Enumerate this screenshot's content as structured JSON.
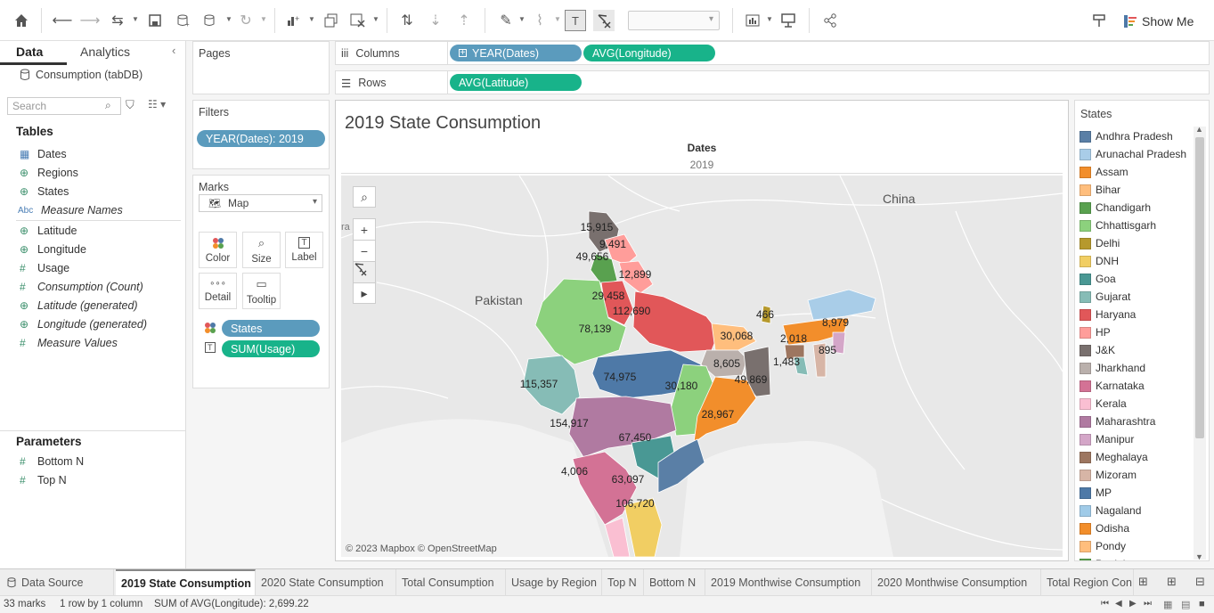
{
  "toolbar": {
    "icons": [
      "home-icon",
      "undo-icon",
      "redo-icon",
      "replay-icon",
      "save-icon",
      "new-datasource-icon",
      "pause-updates-icon",
      "refresh-icon",
      "new-worksheet-icon",
      "duplicate-icon",
      "clear-sheet-icon",
      "swap-icon",
      "sort-asc-icon",
      "sort-desc-icon",
      "highlight-icon",
      "group-icon",
      "label-toggle-icon",
      "fix-axes-icon",
      "fit-icon",
      "presentation-icon",
      "share-icon",
      "pin-icon",
      "show-me-icon"
    ],
    "fit_value": "",
    "show_me_label": "Show Me"
  },
  "data_pane": {
    "tab_data": "Data",
    "tab_analytics": "Analytics",
    "datasource": "Consumption (tabDB)",
    "search_placeholder": "Search",
    "tables_heading": "Tables",
    "fields": [
      {
        "label": "Dates",
        "icon": "calendar-icon",
        "italic": false
      },
      {
        "label": "Regions",
        "icon": "globe-icon",
        "italic": false
      },
      {
        "label": "States",
        "icon": "globe-icon",
        "italic": false
      },
      {
        "label": "Measure Names",
        "icon": "abc-icon",
        "italic": true
      },
      {
        "label": "Latitude",
        "icon": "globe-icon",
        "italic": false
      },
      {
        "label": "Longitude",
        "icon": "globe-icon",
        "italic": false
      },
      {
        "label": "Usage",
        "icon": "hash-icon",
        "italic": false
      },
      {
        "label": "Consumption (Count)",
        "icon": "hash-icon",
        "italic": true
      },
      {
        "label": "Latitude (generated)",
        "icon": "globe-icon",
        "italic": true
      },
      {
        "label": "Longitude (generated)",
        "icon": "globe-icon",
        "italic": true
      },
      {
        "label": "Measure Values",
        "icon": "hash-icon",
        "italic": true
      }
    ],
    "parameters_heading": "Parameters",
    "parameters": [
      "Bottom N",
      "Top N"
    ]
  },
  "pages": {
    "title": "Pages"
  },
  "filters": {
    "title": "Filters",
    "pill": "YEAR(Dates): 2019"
  },
  "marks": {
    "title": "Marks",
    "type": "Map",
    "buttons": [
      "Color",
      "Size",
      "Label",
      "Detail",
      "Tooltip"
    ],
    "pills": [
      "States",
      "SUM(Usage)"
    ]
  },
  "shelves": {
    "columns_label": "Columns",
    "rows_label": "Rows",
    "columns_pills": [
      "YEAR(Dates)",
      "AVG(Longitude)"
    ],
    "rows_pills": [
      "AVG(Latitude)"
    ]
  },
  "viz": {
    "title": "2019 State Consumption",
    "column_header_label": "Dates",
    "column_header_value": "2019",
    "map_labels": {
      "pakistan": "Pakistan",
      "china": "China",
      "partial_left": "ra"
    },
    "attribution": "© 2023 Mapbox © OpenStreetMap",
    "values": [
      {
        "label": "15,915"
      },
      {
        "label": "9,491"
      },
      {
        "label": "49,656"
      },
      {
        "label": "12,899"
      },
      {
        "label": "29,458"
      },
      {
        "label": "112,690"
      },
      {
        "label": "78,139"
      },
      {
        "label": "466"
      },
      {
        "label": "8,979"
      },
      {
        "label": "30,068"
      },
      {
        "label": "2,018"
      },
      {
        "label": "895"
      },
      {
        "label": "8,605"
      },
      {
        "label": "1,483"
      },
      {
        "label": "115,357"
      },
      {
        "label": "74,975"
      },
      {
        "label": "30,180"
      },
      {
        "label": "49,869"
      },
      {
        "label": "28,967"
      },
      {
        "label": "154,917"
      },
      {
        "label": "67,450"
      },
      {
        "label": "4,006"
      },
      {
        "label": "63,097"
      },
      {
        "label": "106,720"
      }
    ]
  },
  "legend": {
    "title": "States",
    "items": [
      {
        "name": "Andhra Pradesh",
        "color": "#5a7fa6"
      },
      {
        "name": "Arunachal Pradesh",
        "color": "#a9cde8"
      },
      {
        "name": "Assam",
        "color": "#f28e2b"
      },
      {
        "name": "Bihar",
        "color": "#ffbe7d"
      },
      {
        "name": "Chandigarh",
        "color": "#59a14f"
      },
      {
        "name": "Chhattisgarh",
        "color": "#8cd17d"
      },
      {
        "name": "Delhi",
        "color": "#b6992d"
      },
      {
        "name": "DNH",
        "color": "#f1ce63"
      },
      {
        "name": "Goa",
        "color": "#499894"
      },
      {
        "name": "Gujarat",
        "color": "#86bcb6"
      },
      {
        "name": "Haryana",
        "color": "#e15759"
      },
      {
        "name": "HP",
        "color": "#ff9d9a"
      },
      {
        "name": "J&K",
        "color": "#79706e"
      },
      {
        "name": "Jharkhand",
        "color": "#bab0ac"
      },
      {
        "name": "Karnataka",
        "color": "#d37295"
      },
      {
        "name": "Kerala",
        "color": "#fabfd2"
      },
      {
        "name": "Maharashtra",
        "color": "#b07aa1"
      },
      {
        "name": "Manipur",
        "color": "#d4a6c8"
      },
      {
        "name": "Meghalaya",
        "color": "#9d7660"
      },
      {
        "name": "Mizoram",
        "color": "#d7b5a6"
      },
      {
        "name": "MP",
        "color": "#4e79a7"
      },
      {
        "name": "Nagaland",
        "color": "#a0cbe8"
      },
      {
        "name": "Odisha",
        "color": "#f28e2b"
      },
      {
        "name": "Pondy",
        "color": "#ffbe7d"
      },
      {
        "name": "Punjab",
        "color": "#59a14f"
      }
    ]
  },
  "sheet_tabs": {
    "data_source": "Data Source",
    "tabs": [
      "2019 State Consumption",
      "2020 State Consumption",
      "Total Consumption",
      "Usage by Region",
      "Top N",
      "Bottom N",
      "2019 Monthwise Consumption",
      "2020 Monthwise Consumption",
      "Total Region Con"
    ],
    "active": "2019 State Consumption"
  },
  "status": {
    "marks": "33 marks",
    "dims": "1 row by 1 column",
    "sum": "SUM of AVG(Longitude): 2,699.22"
  }
}
